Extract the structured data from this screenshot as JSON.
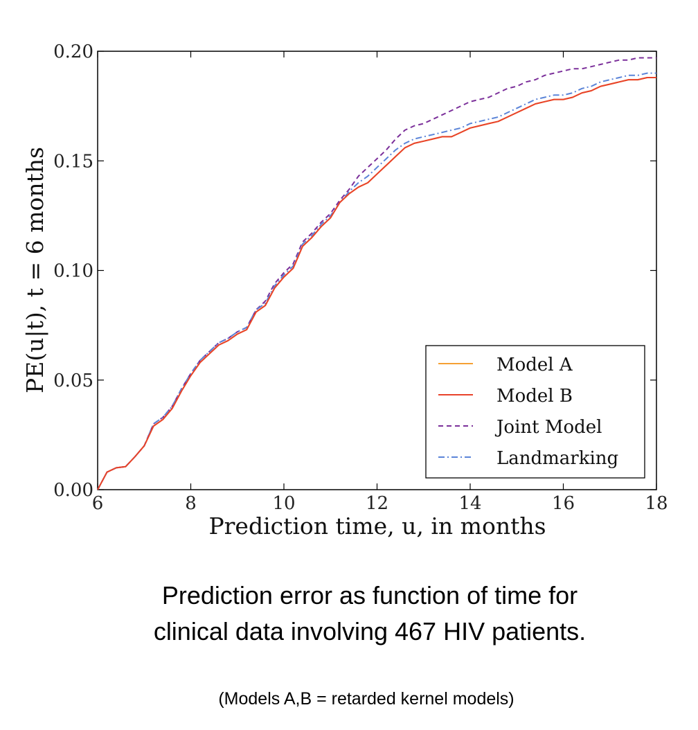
{
  "chart_data": {
    "type": "line",
    "xlabel": "Prediction time, u, in months",
    "ylabel": "PE(u|t), t = 6 months",
    "xlim": [
      6,
      18
    ],
    "ylim": [
      0.0,
      0.2
    ],
    "xticks": [
      6,
      8,
      10,
      12,
      14,
      16,
      18
    ],
    "yticks": [
      0.0,
      0.05,
      0.1,
      0.15,
      0.2
    ],
    "xtick_labels": [
      "6",
      "8",
      "10",
      "12",
      "14",
      "16",
      "18"
    ],
    "ytick_labels": [
      "0.00",
      "0.05",
      "0.10",
      "0.15",
      "0.20"
    ],
    "legend_position": "lower-right",
    "x": [
      6.0,
      6.2,
      6.4,
      6.6,
      6.8,
      7.0,
      7.2,
      7.4,
      7.6,
      7.8,
      8.0,
      8.2,
      8.4,
      8.6,
      8.8,
      9.0,
      9.2,
      9.4,
      9.6,
      9.8,
      10.0,
      10.2,
      10.4,
      10.6,
      10.8,
      11.0,
      11.2,
      11.4,
      11.6,
      11.8,
      12.0,
      12.2,
      12.4,
      12.6,
      12.8,
      13.0,
      13.2,
      13.4,
      13.6,
      13.8,
      14.0,
      14.2,
      14.4,
      14.6,
      14.8,
      15.0,
      15.2,
      15.4,
      15.6,
      15.8,
      16.0,
      16.2,
      16.4,
      16.6,
      16.8,
      17.0,
      17.2,
      17.4,
      17.6,
      17.8,
      18.0
    ],
    "series": [
      {
        "name": "Model A",
        "color": "#f5a033",
        "style": "solid",
        "values": [
          0.0,
          0.008,
          0.01,
          0.0105,
          0.015,
          0.02,
          0.029,
          0.032,
          0.037,
          0.045,
          0.052,
          0.058,
          0.062,
          0.066,
          0.068,
          0.071,
          0.073,
          0.081,
          0.084,
          0.092,
          0.097,
          0.101,
          0.111,
          0.115,
          0.12,
          0.124,
          0.131,
          0.135,
          0.138,
          0.14,
          0.144,
          0.148,
          0.152,
          0.156,
          0.158,
          0.159,
          0.16,
          0.161,
          0.161,
          0.163,
          0.165,
          0.166,
          0.167,
          0.168,
          0.17,
          0.172,
          0.174,
          0.176,
          0.177,
          0.178,
          0.178,
          0.179,
          0.181,
          0.182,
          0.184,
          0.185,
          0.186,
          0.187,
          0.187,
          0.188,
          0.188
        ]
      },
      {
        "name": "Model B",
        "color": "#e8422a",
        "style": "solid",
        "values": [
          0.0,
          0.008,
          0.01,
          0.0105,
          0.015,
          0.02,
          0.029,
          0.032,
          0.037,
          0.045,
          0.052,
          0.058,
          0.062,
          0.066,
          0.068,
          0.071,
          0.073,
          0.081,
          0.084,
          0.092,
          0.097,
          0.101,
          0.111,
          0.115,
          0.12,
          0.124,
          0.131,
          0.135,
          0.138,
          0.14,
          0.144,
          0.148,
          0.152,
          0.156,
          0.158,
          0.159,
          0.16,
          0.161,
          0.161,
          0.163,
          0.165,
          0.166,
          0.167,
          0.168,
          0.17,
          0.172,
          0.174,
          0.176,
          0.177,
          0.178,
          0.178,
          0.179,
          0.181,
          0.182,
          0.184,
          0.185,
          0.186,
          0.187,
          0.187,
          0.188,
          0.188
        ]
      },
      {
        "name": "Joint Model",
        "color": "#7b2f9a",
        "style": "dashed",
        "values": [
          0.0,
          0.008,
          0.01,
          0.0105,
          0.015,
          0.02,
          0.03,
          0.033,
          0.038,
          0.046,
          0.053,
          0.059,
          0.063,
          0.067,
          0.069,
          0.072,
          0.074,
          0.082,
          0.086,
          0.094,
          0.099,
          0.103,
          0.113,
          0.117,
          0.122,
          0.126,
          0.132,
          0.137,
          0.143,
          0.147,
          0.151,
          0.155,
          0.16,
          0.164,
          0.166,
          0.167,
          0.169,
          0.171,
          0.173,
          0.175,
          0.177,
          0.178,
          0.179,
          0.181,
          0.183,
          0.184,
          0.186,
          0.187,
          0.189,
          0.19,
          0.191,
          0.192,
          0.192,
          0.193,
          0.194,
          0.195,
          0.196,
          0.196,
          0.197,
          0.197,
          0.197
        ]
      },
      {
        "name": "Landmarking",
        "color": "#5b84d8",
        "style": "dashdot",
        "values": [
          0.0,
          0.008,
          0.01,
          0.0105,
          0.015,
          0.02,
          0.03,
          0.033,
          0.038,
          0.046,
          0.053,
          0.059,
          0.063,
          0.067,
          0.069,
          0.072,
          0.074,
          0.082,
          0.085,
          0.093,
          0.098,
          0.102,
          0.112,
          0.116,
          0.121,
          0.125,
          0.131,
          0.136,
          0.14,
          0.143,
          0.147,
          0.151,
          0.155,
          0.158,
          0.16,
          0.161,
          0.162,
          0.163,
          0.164,
          0.165,
          0.167,
          0.168,
          0.169,
          0.17,
          0.172,
          0.174,
          0.176,
          0.178,
          0.179,
          0.18,
          0.18,
          0.181,
          0.183,
          0.184,
          0.186,
          0.187,
          0.188,
          0.189,
          0.189,
          0.19,
          0.19
        ]
      }
    ]
  },
  "caption": {
    "line1": "Prediction error as function of time for",
    "line2": "clinical data involving 467 HIV patients.",
    "note": "(Models A,B = retarded kernel models)"
  }
}
